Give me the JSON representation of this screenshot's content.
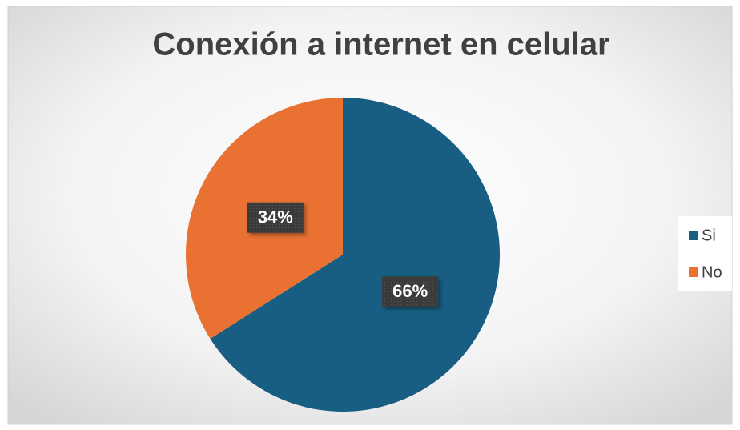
{
  "chart_data": {
    "type": "pie",
    "title": "Conexión a internet en celular",
    "categories": [
      "Si",
      "No"
    ],
    "values": [
      66,
      34
    ],
    "value_labels": [
      "66%",
      "34%"
    ],
    "colors": [
      "#175e82",
      "#e97132"
    ],
    "legend": "right"
  }
}
